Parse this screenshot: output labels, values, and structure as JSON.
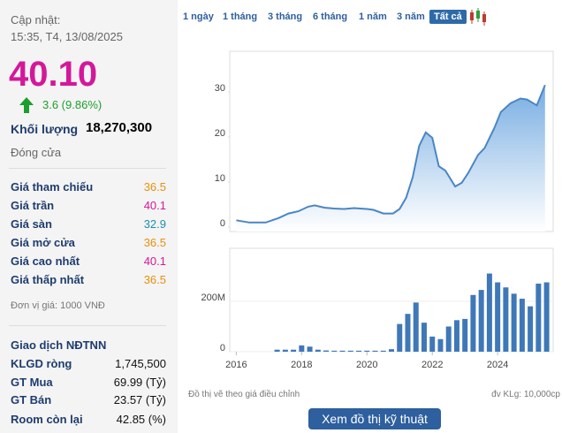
{
  "panel": {
    "updated_label": "Cập nhật:",
    "updated_time": "15:35, T4, 13/08/2025",
    "price": "40.10",
    "change": "3.6 (9.86%)",
    "volume_label": "Khối lượng",
    "volume": "18,270,300",
    "status": "Đóng cửa",
    "prices": [
      {
        "label": "Giá tham chiếu",
        "value": "36.5",
        "color": "#e8900c"
      },
      {
        "label": "Giá trần",
        "value": "40.1",
        "color": "#d4189a"
      },
      {
        "label": "Giá sàn",
        "value": "32.9",
        "color": "#1c8fb0"
      },
      {
        "label": "Giá mở cửa",
        "value": "36.5",
        "color": "#e8900c"
      },
      {
        "label": "Giá cao nhất",
        "value": "40.1",
        "color": "#d4189a"
      },
      {
        "label": "Giá thấp nhất",
        "value": "36.5",
        "color": "#e8900c"
      }
    ],
    "unit_note": "Đơn vị giá: 1000 VNĐ",
    "foreign_title": "Giao dịch NĐTNN",
    "foreign": [
      {
        "label": "KLGD ròng",
        "value": "1,745,500"
      },
      {
        "label": "GT Mua",
        "value": "69.99 (Tỷ)"
      },
      {
        "label": "GT Bán",
        "value": "23.57 (Tỷ)"
      },
      {
        "label": "Room còn lại",
        "value": "42.85 (%)"
      }
    ]
  },
  "range_buttons": {
    "items": [
      "1 ngày",
      "1 tháng",
      "3 tháng",
      "6 tháng",
      "1 năm",
      "3 năm",
      "Tất cả"
    ],
    "active": 6
  },
  "chart_data": [
    {
      "type": "area",
      "color": "#4a86c5",
      "x": [
        2016.0,
        2016.4,
        2016.9,
        2017.3,
        2017.6,
        2017.9,
        2018.2,
        2018.4,
        2018.7,
        2019.0,
        2019.3,
        2019.6,
        2020.0,
        2020.2,
        2020.5,
        2020.8,
        2021.0,
        2021.2,
        2021.4,
        2021.6,
        2021.8,
        2022.0,
        2022.2,
        2022.4,
        2022.7,
        2022.9,
        2023.1,
        2023.4,
        2023.6,
        2023.9,
        2024.1,
        2024.4,
        2024.7,
        2024.9,
        2025.2,
        2025.45
      ],
      "values": [
        1.5,
        1.0,
        1.0,
        2.0,
        3.0,
        3.5,
        4.5,
        4.8,
        4.3,
        4.1,
        4.0,
        4.2,
        4.0,
        3.8,
        3.0,
        3.0,
        4.0,
        6.5,
        11,
        18,
        21,
        19.8,
        13.5,
        12.5,
        9,
        9.8,
        12,
        16,
        17.5,
        22,
        25.5,
        27.5,
        28.5,
        28.3,
        27,
        31.5
      ],
      "xlim": [
        2015.8,
        2025.7
      ],
      "ylim": [
        -1,
        39
      ],
      "yticks": [
        0,
        10,
        20,
        30
      ],
      "grid": false
    },
    {
      "type": "bar",
      "color": "#3f78b8",
      "x": [
        2017.25,
        2017.5,
        2017.75,
        2018.0,
        2018.25,
        2018.5,
        2018.75,
        2019.0,
        2019.25,
        2019.5,
        2019.75,
        2020.0,
        2020.25,
        2020.5,
        2020.75,
        2021.0,
        2021.25,
        2021.5,
        2021.75,
        2022.0,
        2022.25,
        2022.5,
        2022.75,
        2023.0,
        2023.25,
        2023.5,
        2023.75,
        2024.0,
        2024.25,
        2024.5,
        2024.75,
        2025.0,
        2025.25,
        2025.5
      ],
      "values": [
        8000000,
        8000000,
        8000000,
        25000000,
        20000000,
        8000000,
        5000000,
        4000000,
        4000000,
        4000000,
        4000000,
        4000000,
        4000000,
        4000000,
        10000000,
        110000000,
        150000000,
        195000000,
        115000000,
        60000000,
        50000000,
        100000000,
        125000000,
        130000000,
        225000000,
        245000000,
        310000000,
        275000000,
        255000000,
        230000000,
        210000000,
        180000000,
        270000000,
        275000000
      ],
      "xlim": [
        2015.8,
        2025.7
      ],
      "ylim": [
        0,
        410000000
      ],
      "yticks": [
        0,
        {
          "value": 200000000,
          "label": "200M"
        }
      ],
      "xticks": [
        2016,
        2018,
        2020,
        2022,
        2024
      ],
      "grid": true
    }
  ],
  "footer": {
    "note": "Đồ thị vẽ theo giá điều chỉnh",
    "volume_unit": "đv KLg: 10,000cp",
    "button": "Xem đồ thị kỹ thuật"
  }
}
